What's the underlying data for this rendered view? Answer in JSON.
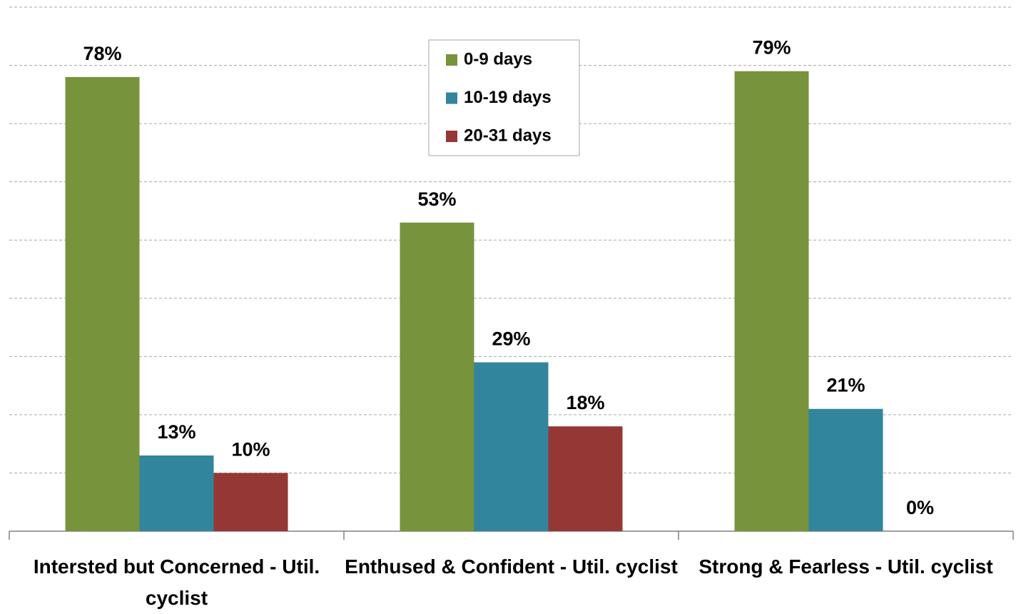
{
  "chart_data": {
    "type": "bar",
    "categories": [
      "Intersted but Concerned - Util. cyclist",
      "Enthused & Confident - Util. cyclist",
      "Strong & Fearless - Util. cyclist"
    ],
    "series": [
      {
        "name": "0-9 days",
        "color": "#77933c",
        "values": [
          78,
          53,
          79
        ],
        "value_labels": [
          "78%",
          "53%",
          "79%"
        ]
      },
      {
        "name": "10-19 days",
        "color": "#31859c",
        "values": [
          13,
          29,
          21
        ],
        "value_labels": [
          "13%",
          "29%",
          "21%"
        ]
      },
      {
        "name": "20-31 days",
        "color": "#953735",
        "values": [
          10,
          18,
          0
        ],
        "value_labels": [
          "10%",
          "18%",
          "0%"
        ]
      }
    ],
    "ylim": [
      0,
      90
    ],
    "yticks": [
      0,
      10,
      20,
      30,
      40,
      50,
      60,
      70,
      80,
      90
    ],
    "grid": true,
    "legend": "top"
  }
}
